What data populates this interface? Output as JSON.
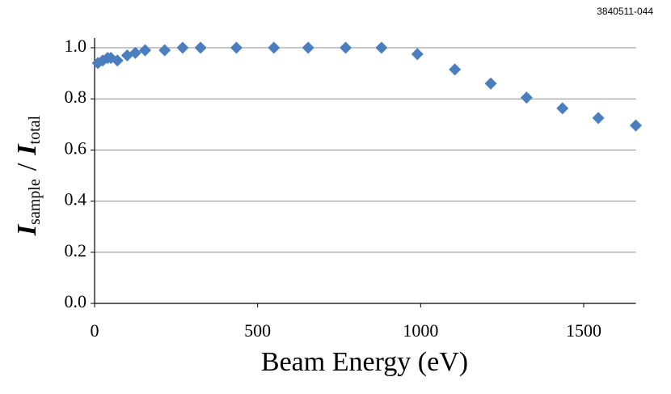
{
  "chart_data": {
    "type": "scatter",
    "figure_id": "3840511-044",
    "xlabel": "Beam Energy (eV)",
    "ylabel_parts": [
      "I",
      "sample",
      "/",
      "I",
      "total"
    ],
    "series": [
      {
        "color": "#4a7ebf",
        "x": [
          10,
          25,
          40,
          50,
          70,
          100,
          125,
          155,
          215,
          270,
          325,
          435,
          550,
          655,
          770,
          880,
          990,
          1105,
          1215,
          1325,
          1435,
          1545,
          1660
        ],
        "values": [
          0.94,
          0.95,
          0.96,
          0.96,
          0.95,
          0.97,
          0.98,
          0.99,
          0.99,
          1.0,
          1.0,
          1.0,
          1.0,
          1.0,
          1.0,
          1.0,
          0.975,
          0.915,
          0.86,
          0.805,
          0.763,
          0.725,
          0.696
        ]
      }
    ],
    "xlim": [
      0,
      1660
    ],
    "xticks": [
      0,
      500,
      1000,
      1500
    ],
    "ylim": [
      0,
      1
    ],
    "yticks": [
      {
        "value": 0,
        "label": "0.0"
      },
      {
        "value": 0.2,
        "label": "0.2"
      },
      {
        "value": 0.4,
        "label": "0.4"
      },
      {
        "value": 0.6,
        "label": "0.6"
      },
      {
        "value": 0.8,
        "label": "0.8"
      },
      {
        "value": 1,
        "label": "1.0"
      }
    ],
    "grid": true
  }
}
